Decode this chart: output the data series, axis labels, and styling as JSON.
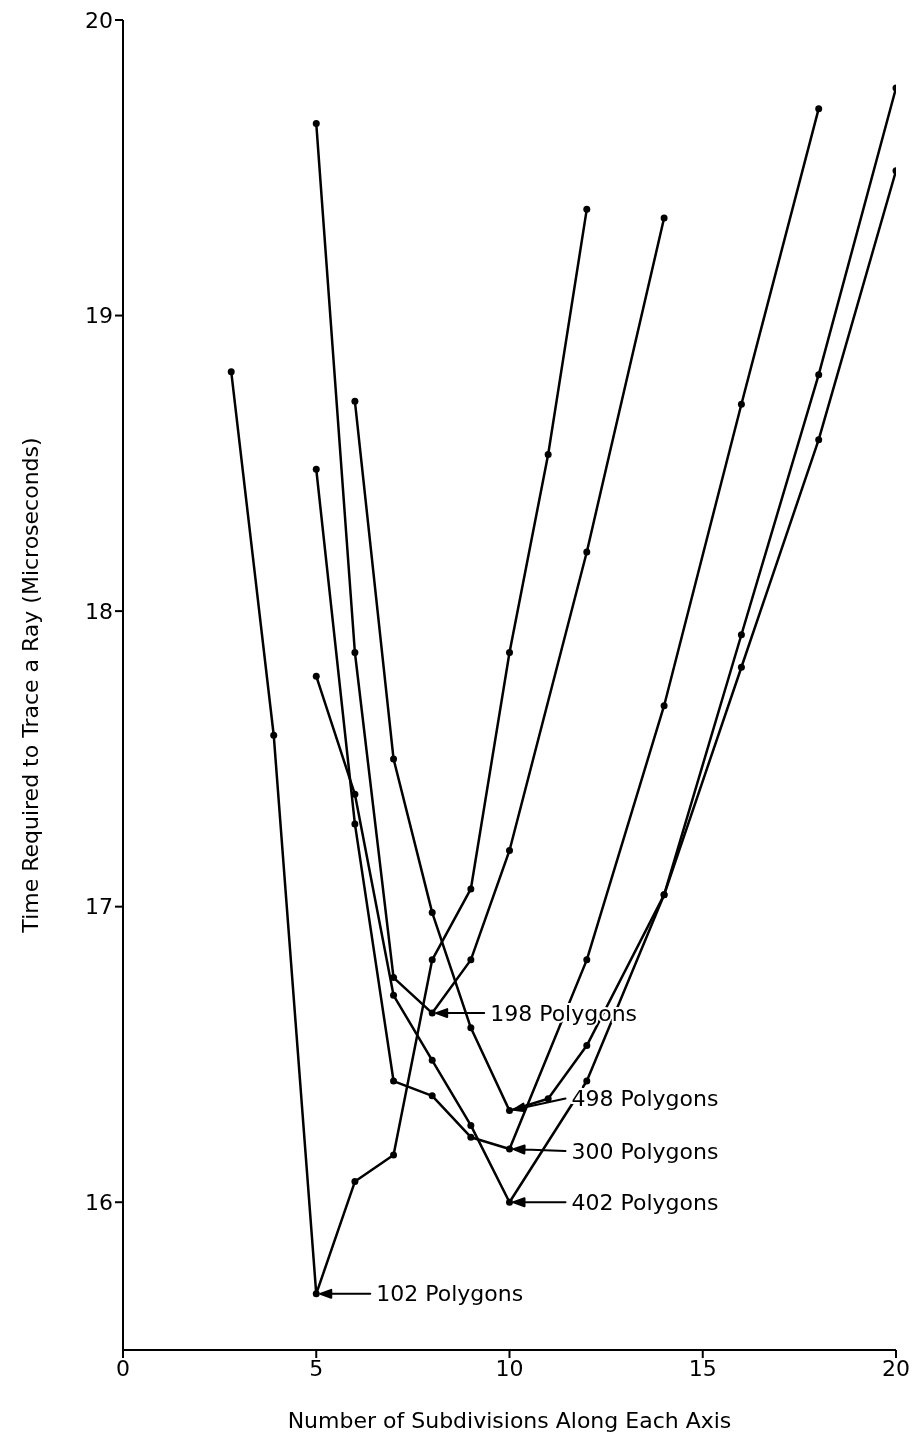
{
  "chart_data": {
    "type": "line",
    "xlabel": "Number of Subdivisions Along Each Axis",
    "ylabel": "Time Required to Trace a Ray (Microseconds)",
    "xlim": [
      0,
      20
    ],
    "xticks": [
      0,
      5,
      10,
      15,
      20
    ],
    "ylim": [
      15.5,
      20
    ],
    "yticks": [
      16,
      17,
      18,
      19,
      20
    ],
    "grid": false,
    "marker": "circle",
    "line_style": "solid",
    "series": [
      {
        "color": "#000000",
        "x": [
          2.8,
          3.9,
          5,
          6,
          7,
          8,
          9,
          10,
          11,
          12
        ],
        "values": [
          18.81,
          17.58,
          15.69,
          16.07,
          16.16,
          16.82,
          17.06,
          17.86,
          18.53,
          19.36
        ]
      },
      {
        "color": "#000000",
        "x": [
          5,
          6,
          7,
          8,
          9,
          10,
          12,
          14
        ],
        "values": [
          19.65,
          17.86,
          16.76,
          16.64,
          16.82,
          17.19,
          18.2,
          19.33
        ]
      },
      {
        "color": "#000000",
        "x": [
          5,
          6,
          7,
          8,
          9,
          10,
          12,
          14,
          16,
          18
        ],
        "values": [
          18.48,
          17.28,
          16.41,
          16.36,
          16.22,
          16.18,
          16.82,
          17.68,
          18.7,
          19.7
        ]
      },
      {
        "color": "#000000",
        "x": [
          5,
          6,
          7,
          8,
          9,
          10,
          12,
          14,
          16,
          18,
          20
        ],
        "values": [
          17.78,
          17.38,
          16.7,
          16.48,
          16.26,
          16.0,
          16.41,
          17.04,
          17.81,
          18.58,
          19.49
        ]
      },
      {
        "color": "#000000",
        "x": [
          6,
          7,
          8,
          9,
          10,
          11,
          12,
          14,
          16,
          18,
          20
        ],
        "values": [
          18.71,
          17.5,
          16.98,
          16.59,
          16.31,
          16.35,
          16.53,
          17.04,
          17.92,
          18.8,
          19.77
        ]
      }
    ],
    "annotations": [
      {
        "text": "198 Polygons",
        "x": 8,
        "y": 16.64
      },
      {
        "text": "498 Polygons",
        "x": 10,
        "y": 16.31
      },
      {
        "text": "300 Polygons",
        "x": 10,
        "y": 16.18
      },
      {
        "text": "402 Polygons",
        "x": 10,
        "y": 16.0
      },
      {
        "text": "102 Polygons",
        "x": 5,
        "y": 15.69
      }
    ]
  }
}
